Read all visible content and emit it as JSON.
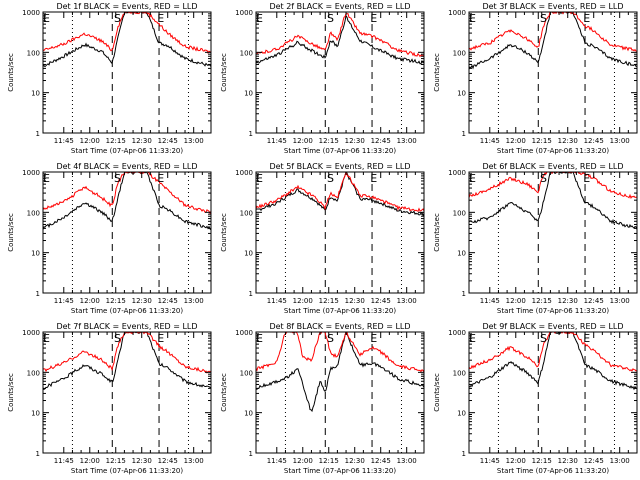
{
  "chart_data": [
    {
      "type": "line",
      "title": "Det 1f BLACK = Events, RED = LLD",
      "xlabel": "Start Time (07-Apr-06 11:33:20)",
      "ylabel": "Counts/sec",
      "yscale": "log",
      "ylim": [
        1,
        1000
      ],
      "yticks": [
        "1",
        "10",
        "100",
        "1000"
      ],
      "xlim": [
        "11:33",
        "13:10"
      ],
      "xticks": [
        "11:45",
        "12:00",
        "12:15",
        "12:30",
        "12:45",
        "13:00"
      ],
      "flags": [
        "E",
        "S",
        "E"
      ],
      "series": [
        {
          "name": "BLACK",
          "color": "#000000",
          "time": [
            "11:33",
            "11:45",
            "11:57",
            "12:07",
            "12:13",
            "12:16",
            "12:20",
            "12:25",
            "12:33",
            "12:40",
            "12:45",
            "12:55",
            "13:10"
          ],
          "values": [
            45,
            80,
            155,
            105,
            55,
            200,
            1000,
            1000,
            1000,
            170,
            150,
            70,
            45
          ]
        },
        {
          "name": "RED",
          "color": "#ff0000",
          "time": [
            "11:33",
            "11:45",
            "11:57",
            "12:07",
            "12:13",
            "12:16",
            "12:20",
            "12:25",
            "12:33",
            "12:40",
            "12:45",
            "12:55",
            "13:10"
          ],
          "values": [
            110,
            160,
            290,
            190,
            110,
            400,
            1000,
            1000,
            1000,
            500,
            300,
            140,
            100
          ]
        }
      ]
    },
    {
      "type": "line",
      "title": "Det 2f BLACK = Events, RED = LLD",
      "xlabel": "Start Time (07-Apr-06 11:33:20)",
      "ylabel": "Counts/sec",
      "yscale": "log",
      "ylim": [
        1,
        1000
      ],
      "yticks": [
        "1",
        "10",
        "100",
        "1000"
      ],
      "xlim": [
        "11:33",
        "13:10"
      ],
      "xticks": [
        "11:45",
        "12:00",
        "12:15",
        "12:30",
        "12:45",
        "13:00"
      ],
      "flags": [
        "E",
        "S",
        "E"
      ],
      "series": [
        {
          "name": "BLACK",
          "color": "#000000",
          "time": [
            "11:33",
            "11:45",
            "11:57",
            "12:07",
            "12:13",
            "12:16",
            "12:20",
            "12:25",
            "12:33",
            "12:40",
            "12:45",
            "12:55",
            "13:10"
          ],
          "values": [
            55,
            85,
            175,
            100,
            75,
            200,
            140,
            750,
            200,
            140,
            110,
            70,
            55
          ]
        },
        {
          "name": "RED",
          "color": "#ff0000",
          "time": [
            "11:33",
            "11:45",
            "11:57",
            "12:07",
            "12:13",
            "12:16",
            "12:20",
            "12:25",
            "12:33",
            "12:40",
            "12:45",
            "12:55",
            "13:10"
          ],
          "values": [
            90,
            120,
            250,
            150,
            110,
            300,
            200,
            1000,
            300,
            250,
            200,
            110,
            80
          ]
        }
      ]
    },
    {
      "type": "line",
      "title": "Det 3f BLACK = Events, RED = LLD",
      "xlabel": "Start Time (07-Apr-06 11:33:20)",
      "ylabel": "Counts/sec",
      "yscale": "log",
      "ylim": [
        1,
        1000
      ],
      "yticks": [
        "1",
        "10",
        "100",
        "1000"
      ],
      "xlim": [
        "11:33",
        "13:10"
      ],
      "xticks": [
        "11:45",
        "12:00",
        "12:15",
        "12:30",
        "12:45",
        "13:00"
      ],
      "flags": [
        "E",
        "S",
        "E"
      ],
      "series": [
        {
          "name": "BLACK",
          "color": "#000000",
          "time": [
            "11:33",
            "11:45",
            "11:57",
            "12:07",
            "12:13",
            "12:16",
            "12:20",
            "12:25",
            "12:33",
            "12:40",
            "12:45",
            "12:55",
            "13:10"
          ],
          "values": [
            40,
            70,
            155,
            95,
            55,
            180,
            1000,
            1000,
            1000,
            170,
            140,
            70,
            45
          ]
        },
        {
          "name": "RED",
          "color": "#ff0000",
          "time": [
            "11:33",
            "11:45",
            "11:57",
            "12:07",
            "12:13",
            "12:16",
            "12:20",
            "12:25",
            "12:33",
            "12:40",
            "12:45",
            "12:55",
            "13:10"
          ],
          "values": [
            120,
            170,
            360,
            210,
            130,
            450,
            1000,
            1000,
            1000,
            450,
            350,
            150,
            110
          ]
        }
      ]
    },
    {
      "type": "line",
      "title": "Det 4f BLACK = Events, RED = LLD",
      "xlabel": "Start Time (07-Apr-06 11:33:20)",
      "ylabel": "Counts/sec",
      "yscale": "log",
      "ylim": [
        1,
        1000
      ],
      "yticks": [
        "1",
        "10",
        "100",
        "1000"
      ],
      "xlim": [
        "11:33",
        "13:10"
      ],
      "xticks": [
        "11:45",
        "12:00",
        "12:15",
        "12:30",
        "12:45",
        "13:00"
      ],
      "flags": [
        "E",
        "S",
        "E"
      ],
      "series": [
        {
          "name": "BLACK",
          "color": "#000000",
          "time": [
            "11:33",
            "11:45",
            "11:57",
            "12:07",
            "12:13",
            "12:16",
            "12:20",
            "12:25",
            "12:33",
            "12:40",
            "12:45",
            "12:55",
            "13:10"
          ],
          "values": [
            40,
            75,
            175,
            100,
            60,
            200,
            1000,
            1000,
            1000,
            150,
            120,
            60,
            40
          ]
        },
        {
          "name": "RED",
          "color": "#ff0000",
          "time": [
            "11:33",
            "11:45",
            "11:57",
            "12:07",
            "12:13",
            "12:16",
            "12:20",
            "12:25",
            "12:33",
            "12:40",
            "12:45",
            "12:55",
            "13:10"
          ],
          "values": [
            120,
            180,
            420,
            230,
            140,
            500,
            1000,
            1000,
            1000,
            550,
            350,
            150,
            100
          ]
        }
      ]
    },
    {
      "type": "line",
      "title": "Det 5f BLACK = Events, RED = LLD",
      "xlabel": "Start Time (07-Apr-06 11:33:20)",
      "ylabel": "Counts/sec",
      "yscale": "log",
      "ylim": [
        1,
        1000
      ],
      "yticks": [
        "1",
        "10",
        "100",
        "1000"
      ],
      "xlim": [
        "11:33",
        "13:10"
      ],
      "xticks": [
        "11:45",
        "12:00",
        "12:15",
        "12:30",
        "12:45",
        "13:00"
      ],
      "flags": [
        "E",
        "S",
        "E"
      ],
      "series": [
        {
          "name": "BLACK",
          "color": "#000000",
          "time": [
            "11:33",
            "11:45",
            "11:57",
            "12:07",
            "12:13",
            "12:16",
            "12:20",
            "12:25",
            "12:33",
            "12:40",
            "12:45",
            "12:55",
            "13:10"
          ],
          "values": [
            110,
            170,
            360,
            200,
            110,
            250,
            190,
            1000,
            220,
            200,
            170,
            110,
            90
          ]
        },
        {
          "name": "RED",
          "color": "#ff0000",
          "time": [
            "11:33",
            "11:45",
            "11:57",
            "12:07",
            "12:13",
            "12:16",
            "12:20",
            "12:25",
            "12:33",
            "12:40",
            "12:45",
            "12:55",
            "13:10"
          ],
          "values": [
            130,
            200,
            420,
            240,
            130,
            300,
            230,
            1000,
            260,
            240,
            200,
            130,
            110
          ]
        }
      ]
    },
    {
      "type": "line",
      "title": "Det 6f BLACK = Events, RED = LLD",
      "xlabel": "Start Time (07-Apr-06 11:33:20)",
      "ylabel": "Counts/sec",
      "yscale": "log",
      "ylim": [
        1,
        1000
      ],
      "yticks": [
        "1",
        "10",
        "100",
        "1000"
      ],
      "xlim": [
        "11:33",
        "13:10"
      ],
      "xticks": [
        "11:45",
        "12:00",
        "12:15",
        "12:30",
        "12:45",
        "13:00"
      ],
      "flags": [
        "E",
        "S",
        "E"
      ],
      "series": [
        {
          "name": "BLACK",
          "color": "#000000",
          "time": [
            "11:33",
            "11:45",
            "11:57",
            "12:07",
            "12:13",
            "12:16",
            "12:20",
            "12:25",
            "12:33",
            "12:40",
            "12:45",
            "12:55",
            "13:10"
          ],
          "values": [
            55,
            75,
            175,
            100,
            60,
            180,
            1000,
            1000,
            1000,
            170,
            140,
            60,
            40
          ]
        },
        {
          "name": "RED",
          "color": "#ff0000",
          "time": [
            "11:33",
            "11:45",
            "11:57",
            "12:07",
            "12:13",
            "12:16",
            "12:20",
            "12:25",
            "12:33",
            "12:40",
            "12:45",
            "12:55",
            "13:10"
          ],
          "values": [
            250,
            380,
            700,
            500,
            320,
            900,
            1000,
            1000,
            1000,
            900,
            700,
            330,
            220
          ]
        }
      ]
    },
    {
      "type": "line",
      "title": "Det 7f BLACK = Events, RED = LLD",
      "xlabel": "Start Time (07-Apr-06 11:33:20)",
      "ylabel": "Counts/sec",
      "yscale": "log",
      "ylim": [
        1,
        1000
      ],
      "yticks": [
        "1",
        "10",
        "100",
        "1000"
      ],
      "xlim": [
        "11:33",
        "13:10"
      ],
      "xticks": [
        "11:45",
        "12:00",
        "12:15",
        "12:30",
        "12:45",
        "13:00"
      ],
      "flags": [
        "E",
        "S",
        "E"
      ],
      "series": [
        {
          "name": "BLACK",
          "color": "#000000",
          "time": [
            "11:33",
            "11:45",
            "11:57",
            "12:07",
            "12:13",
            "12:16",
            "12:20",
            "12:25",
            "12:33",
            "12:40",
            "12:45",
            "12:55",
            "13:10"
          ],
          "values": [
            40,
            70,
            155,
            90,
            55,
            180,
            1000,
            1000,
            1000,
            160,
            130,
            60,
            40
          ]
        },
        {
          "name": "RED",
          "color": "#ff0000",
          "time": [
            "11:33",
            "11:45",
            "11:57",
            "12:07",
            "12:13",
            "12:16",
            "12:20",
            "12:25",
            "12:33",
            "12:40",
            "12:45",
            "12:55",
            "13:10"
          ],
          "values": [
            110,
            170,
            330,
            200,
            120,
            420,
            1000,
            1000,
            1000,
            450,
            320,
            140,
            100
          ]
        }
      ]
    },
    {
      "type": "line",
      "title": "Det 8f BLACK = Events, RED = LLD",
      "xlabel": "Start Time (07-Apr-06 11:33:20)",
      "ylabel": "Counts/sec",
      "yscale": "log",
      "ylim": [
        1,
        1000
      ],
      "yticks": [
        "1",
        "10",
        "100",
        "1000"
      ],
      "xlim": [
        "11:33",
        "13:10"
      ],
      "xticks": [
        "11:45",
        "12:00",
        "12:15",
        "12:30",
        "12:45",
        "13:00"
      ],
      "flags": [
        "E",
        "S",
        "E"
      ],
      "series": [
        {
          "name": "BLACK",
          "color": "#000000",
          "time": [
            "11:33",
            "11:45",
            "11:50",
            "11:57",
            "12:00",
            "12:05",
            "12:10",
            "12:13",
            "12:16",
            "12:20",
            "12:25",
            "12:33",
            "12:40",
            "12:45",
            "12:55",
            "13:10"
          ],
          "values": [
            40,
            60,
            70,
            120,
            50,
            10,
            60,
            30,
            120,
            150,
            1000,
            150,
            170,
            140,
            70,
            45
          ]
        },
        {
          "name": "RED",
          "color": "#ff0000",
          "time": [
            "11:33",
            "11:45",
            "11:50",
            "11:57",
            "12:00",
            "12:05",
            "12:10",
            "12:13",
            "12:16",
            "12:20",
            "12:25",
            "12:33",
            "12:40",
            "12:45",
            "12:55",
            "13:10"
          ],
          "values": [
            120,
            180,
            1000,
            1000,
            230,
            200,
            1000,
            1000,
            300,
            240,
            1000,
            280,
            400,
            320,
            140,
            110
          ]
        }
      ]
    },
    {
      "type": "line",
      "title": "Det 9f BLACK = Events, RED = LLD",
      "xlabel": "Start Time (07-Apr-06 11:33:20)",
      "ylabel": "Counts/sec",
      "yscale": "log",
      "ylim": [
        1,
        1000
      ],
      "yticks": [
        "1",
        "10",
        "100",
        "1000"
      ],
      "xlim": [
        "11:33",
        "13:10"
      ],
      "xticks": [
        "11:45",
        "12:00",
        "12:15",
        "12:30",
        "12:45",
        "13:00"
      ],
      "flags": [
        "E",
        "S",
        "E"
      ],
      "series": [
        {
          "name": "BLACK",
          "color": "#000000",
          "time": [
            "11:33",
            "11:45",
            "11:57",
            "12:07",
            "12:13",
            "12:16",
            "12:20",
            "12:25",
            "12:33",
            "12:40",
            "12:45",
            "12:55",
            "13:10"
          ],
          "values": [
            45,
            75,
            180,
            95,
            55,
            170,
            1000,
            1000,
            1000,
            150,
            120,
            60,
            40
          ]
        },
        {
          "name": "RED",
          "color": "#ff0000",
          "time": [
            "11:33",
            "11:45",
            "11:57",
            "12:07",
            "12:13",
            "12:16",
            "12:20",
            "12:25",
            "12:33",
            "12:40",
            "12:45",
            "12:55",
            "13:10"
          ],
          "values": [
            130,
            200,
            420,
            230,
            140,
            480,
            1000,
            1000,
            1000,
            480,
            350,
            150,
            110
          ]
        }
      ]
    }
  ]
}
